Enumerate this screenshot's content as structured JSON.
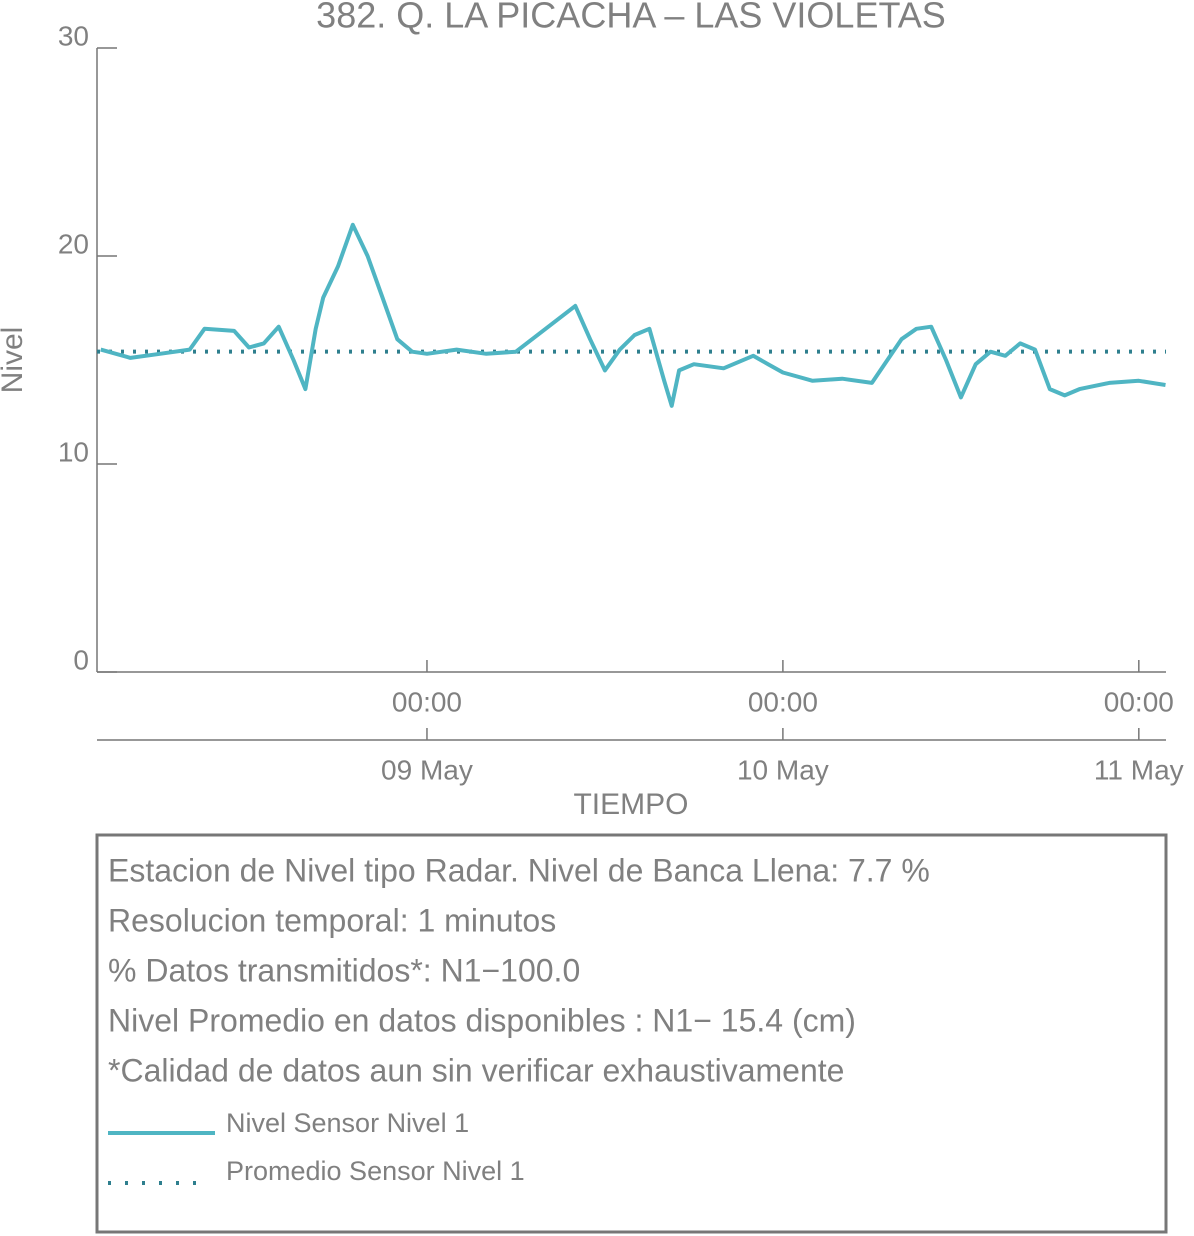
{
  "chart_data": {
    "type": "line",
    "title": "382. Q. LA PICACHA – LAS VIOLETAS",
    "xlabel": "TIEMPO",
    "ylabel": "Nivel",
    "x": [
      "08 May 02:00",
      "08 May 04:00",
      "08 May 06:00",
      "08 May 08:00",
      "08 May 09:00",
      "08 May 11:00",
      "08 May 12:00",
      "08 May 13:00",
      "08 May 14:00",
      "08 May 15:00",
      "08 May 15:48",
      "08 May 16:30",
      "08 May 17:00",
      "08 May 18:00",
      "08 May 19:00",
      "08 May 20:00",
      "08 May 21:00",
      "08 May 22:00",
      "08 May 23:00",
      "09 May 00:00",
      "09 May 02:00",
      "09 May 04:00",
      "09 May 06:00",
      "09 May 08:00",
      "09 May 10:00",
      "09 May 11:00",
      "09 May 12:00",
      "09 May 13:00",
      "09 May 14:00",
      "09 May 15:00",
      "09 May 16:00",
      "09 May 16:30",
      "09 May 17:00",
      "09 May 18:00",
      "09 May 20:00",
      "09 May 22:00",
      "09 May 23:00",
      "10 May 00:00",
      "10 May 02:00",
      "10 May 04:00",
      "10 May 06:00",
      "10 May 08:00",
      "10 May 09:00",
      "10 May 10:00",
      "10 May 11:00",
      "10 May 12:00",
      "10 May 13:00",
      "10 May 14:00",
      "10 May 15:00",
      "10 May 16:00",
      "10 May 17:00",
      "10 May 18:00",
      "10 May 19:00",
      "10 May 20:00",
      "10 May 22:00",
      "11 May 00:00",
      "11 May 01:48"
    ],
    "series": [
      {
        "name": "Nivel Sensor Nivel 1",
        "color": "#4fb5c3",
        "values": [
          15.5,
          15.1,
          15.3,
          15.5,
          16.5,
          16.4,
          15.6,
          15.8,
          16.6,
          15.0,
          13.6,
          16.5,
          18.0,
          19.5,
          21.5,
          20.0,
          18.0,
          16.0,
          15.4,
          15.3,
          15.5,
          15.3,
          15.4,
          16.5,
          17.6,
          16.0,
          14.5,
          15.5,
          16.2,
          16.5,
          14.0,
          12.8,
          14.5,
          14.8,
          14.6,
          15.2,
          14.8,
          14.4,
          14.0,
          14.1,
          13.9,
          16.0,
          16.5,
          16.6,
          15.0,
          13.2,
          14.8,
          15.4,
          15.2,
          15.8,
          15.5,
          13.6,
          13.3,
          13.6,
          13.9,
          14.0,
          13.8
        ]
      }
    ],
    "hlines": [
      {
        "name": "Promedio Sensor Nivel 1",
        "value": 15.4,
        "color": "#2e7f8e",
        "style": "dotted"
      }
    ],
    "xlim": [
      "08 May 01:45",
      "11 May 01:50"
    ],
    "xticks": [
      {
        "value": "09 May 00:00",
        "label": "00:00",
        "date_label": "09 May"
      },
      {
        "value": "10 May 00:00",
        "label": "00:00",
        "date_label": "10 May"
      },
      {
        "value": "11 May 00:00",
        "label": "00:00",
        "date_label": "11 May"
      }
    ],
    "ylim": [
      0,
      30
    ],
    "yticks": [
      0,
      10,
      20,
      30
    ],
    "notes": [
      "Estacion de Nivel tipo Radar. Nivel de Banca Llena:  7.7 %",
      "Resolucion temporal: 1 minutos",
      "% Datos transmitidos*: N1−100.0",
      "Nivel Promedio en datos disponibles : N1− 15.4 (cm)",
      "*Calidad de datos aun sin verificar exhaustivamente"
    ]
  }
}
